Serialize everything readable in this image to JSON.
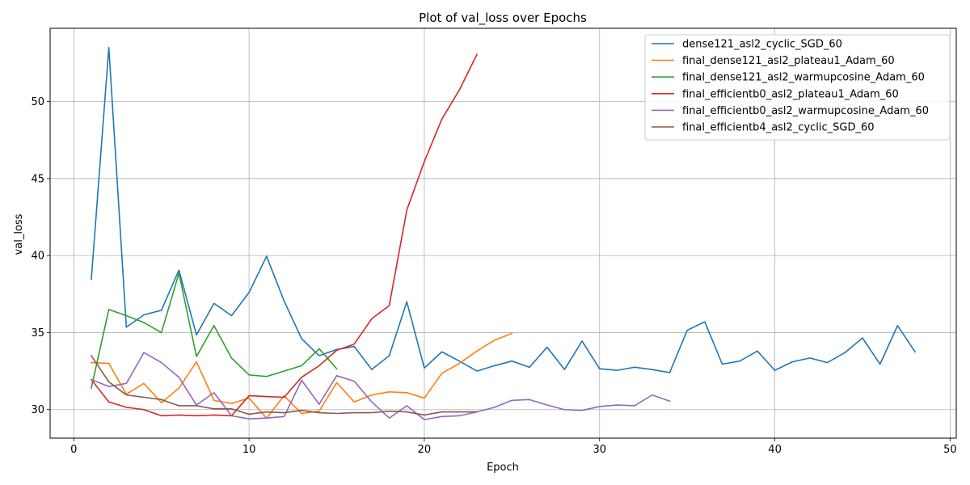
{
  "chart_data": {
    "type": "line",
    "title": "Plot of val_loss over Epochs",
    "xlabel": "Epoch",
    "ylabel": "val_loss",
    "xlim": [
      -1.35,
      50.35
    ],
    "ylim": [
      28.15,
      54.75
    ],
    "xticks": [
      0,
      10,
      20,
      30,
      40,
      50
    ],
    "yticks": [
      30,
      35,
      40,
      45,
      50
    ],
    "grid": true,
    "legend_position": "top-right",
    "series": [
      {
        "name": "dense121_asl2_cyclic_SGD_60",
        "color": "#1f77b4",
        "x": [
          1,
          2,
          3,
          4,
          5,
          6,
          7,
          8,
          9,
          10,
          11,
          12,
          13,
          14,
          15,
          16,
          17,
          18,
          19,
          20,
          21,
          22,
          23,
          24,
          25,
          26,
          27,
          28,
          29,
          30,
          31,
          32,
          33,
          34,
          35,
          36,
          37,
          38,
          39,
          40,
          41,
          42,
          43,
          44,
          45,
          46,
          47,
          48
        ],
        "values": [
          38.45,
          53.5,
          35.35,
          36.15,
          36.45,
          39.05,
          34.85,
          36.9,
          36.1,
          37.6,
          39.95,
          37.05,
          34.6,
          33.5,
          33.9,
          34.1,
          32.6,
          33.5,
          37.0,
          32.7,
          33.75,
          33.15,
          32.5,
          32.85,
          33.15,
          32.75,
          34.05,
          32.6,
          34.45,
          32.65,
          32.55,
          32.75,
          32.6,
          32.4,
          35.15,
          35.7,
          32.95,
          33.15,
          33.8,
          32.55,
          33.1,
          33.35,
          33.05,
          33.7,
          34.65,
          32.95,
          35.45,
          33.75
        ]
      },
      {
        "name": "final_dense121_asl2_plateau1_Adam_60",
        "color": "#ff7f0e",
        "x": [
          1,
          2,
          3,
          4,
          5,
          6,
          7,
          8,
          9,
          10,
          11,
          12,
          13,
          14,
          15,
          16,
          17,
          18,
          19,
          20,
          21,
          22,
          23,
          24,
          25
        ],
        "values": [
          33.05,
          33.0,
          31.0,
          31.7,
          30.45,
          31.4,
          33.1,
          30.6,
          30.4,
          30.75,
          29.45,
          30.9,
          29.75,
          29.9,
          31.75,
          30.5,
          30.95,
          31.15,
          31.1,
          30.75,
          32.35,
          33.0,
          33.8,
          34.5,
          34.95
        ]
      },
      {
        "name": "final_dense121_asl2_warmupcosine_Adam_60",
        "color": "#2ca02c",
        "x": [
          1,
          2,
          3,
          4,
          5,
          6,
          7,
          8,
          9,
          10,
          11,
          12,
          13,
          14,
          15
        ],
        "values": [
          31.4,
          36.5,
          36.1,
          35.65,
          35.0,
          38.85,
          33.45,
          35.45,
          33.35,
          32.25,
          32.15,
          32.5,
          32.85,
          33.95,
          32.65
        ]
      },
      {
        "name": "final_efficientb0_asl2_plateau1_Adam_60",
        "color": "#d62728",
        "x": [
          1,
          2,
          3,
          4,
          5,
          6,
          7,
          8,
          9,
          10,
          11,
          12,
          13,
          14,
          15,
          16,
          17,
          18,
          19,
          20,
          21,
          22,
          23
        ],
        "values": [
          31.95,
          30.5,
          30.15,
          30.0,
          29.6,
          29.65,
          29.6,
          29.65,
          29.6,
          30.9,
          30.85,
          30.8,
          32.1,
          32.85,
          33.85,
          34.25,
          35.9,
          36.75,
          42.95,
          46.1,
          48.85,
          50.75,
          53.05
        ]
      },
      {
        "name": "final_efficientb0_asl2_warmupcosine_Adam_60",
        "color": "#9467bd",
        "x": [
          1,
          2,
          3,
          4,
          5,
          6,
          7,
          8,
          9,
          10,
          11,
          12,
          13,
          14,
          15,
          16,
          17,
          18,
          19,
          20,
          21,
          22,
          23,
          24,
          25,
          26,
          27,
          28,
          29,
          30,
          31,
          32,
          33,
          34
        ],
        "values": [
          31.95,
          31.5,
          31.7,
          33.7,
          33.05,
          32.1,
          30.3,
          31.1,
          29.6,
          29.4,
          29.45,
          29.55,
          31.9,
          30.35,
          32.2,
          31.85,
          30.5,
          29.45,
          30.25,
          29.35,
          29.55,
          29.6,
          29.85,
          30.15,
          30.6,
          30.65,
          30.3,
          30.0,
          29.95,
          30.2,
          30.3,
          30.25,
          30.95,
          30.55
        ]
      },
      {
        "name": "final_efficientb4_asl2_cyclic_SGD_60",
        "color": "#8c564b",
        "x": [
          1,
          2,
          3,
          4,
          5,
          6,
          7,
          8,
          9,
          10,
          11,
          12,
          13,
          14,
          15,
          16,
          17,
          18,
          19,
          20,
          21,
          22,
          23
        ],
        "values": [
          33.5,
          31.8,
          30.95,
          30.8,
          30.65,
          30.25,
          30.25,
          30.05,
          30.05,
          29.7,
          29.85,
          29.8,
          29.95,
          29.8,
          29.75,
          29.8,
          29.8,
          29.9,
          29.85,
          29.65,
          29.85,
          29.85,
          29.85
        ]
      }
    ]
  }
}
